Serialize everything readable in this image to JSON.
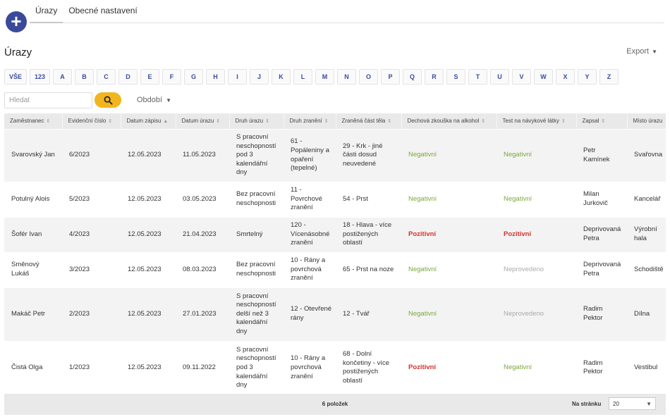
{
  "tabs": [
    {
      "label": "Úrazy",
      "active": true
    },
    {
      "label": "Obecné nastavení",
      "active": false
    }
  ],
  "page": {
    "title": "Úrazy",
    "export_label": "Export"
  },
  "letters": [
    "VŠE",
    "123",
    "A",
    "B",
    "C",
    "D",
    "E",
    "F",
    "G",
    "H",
    "I",
    "J",
    "K",
    "L",
    "M",
    "N",
    "O",
    "P",
    "Q",
    "R",
    "S",
    "T",
    "U",
    "V",
    "W",
    "X",
    "Y",
    "Z"
  ],
  "search": {
    "placeholder": "Hledat",
    "value": ""
  },
  "filter": {
    "period_label": "Období"
  },
  "table": {
    "columns": [
      "Zaměstnanec",
      "Evidenční číslo",
      "Datum zápisu",
      "Datum úrazu",
      "Druh úrazu",
      "Druh zranění",
      "Zraněná část těla",
      "Dechová zkouška na alkohol",
      "Test na návykové látky",
      "Zapsal",
      "Místo úrazu"
    ],
    "sorted_column": "Datum zápisu",
    "rows": [
      {
        "employee": "Svarovský Jan",
        "number": "6/2023",
        "record_date": "12.05.2023",
        "injury_date": "11.05.2023",
        "injury_type": "S pracovní neschopností pod 3 kalendářní dny",
        "wound_type": "61 - Popáleniny a opaření (tepelné)",
        "body_part": "29 - Krk - jiné části dosud neuvedené",
        "alcohol": "Negativní",
        "drugs": "Negativní",
        "recorded_by": "Petr Kamínek",
        "place": "Svařovna"
      },
      {
        "employee": "Potulný Alois",
        "number": "5/2023",
        "record_date": "12.05.2023",
        "injury_date": "03.05.2023",
        "injury_type": "Bez pracovní neschopnosti",
        "wound_type": "11 - Povrchové zranění",
        "body_part": "54 - Prst",
        "alcohol": "Negativní",
        "drugs": "Negativní",
        "recorded_by": "Milan Jurkovič",
        "place": "Kancelář"
      },
      {
        "employee": "Šofér Ivan",
        "number": "4/2023",
        "record_date": "12.05.2023",
        "injury_date": "21.04.2023",
        "injury_type": "Smrtelný",
        "wound_type": "120 - Vícenásobné zranění",
        "body_part": "18 - Hlava - více postižených oblastí",
        "alcohol": "Pozitivní",
        "drugs": "Pozitivní",
        "recorded_by": "Deprivovaná Petra",
        "place": "Výrobní hala"
      },
      {
        "employee": "Směnový Lukáš",
        "number": "3/2023",
        "record_date": "12.05.2023",
        "injury_date": "08.03.2023",
        "injury_type": "Bez pracovní neschopnosti",
        "wound_type": "10 - Rány a povrchová zranění",
        "body_part": "65 - Prst na noze",
        "alcohol": "Negativní",
        "drugs": "Neprovedeno",
        "recorded_by": "Deprivovaná Petra",
        "place": "Schodiště"
      },
      {
        "employee": "Makáč Petr",
        "number": "2/2023",
        "record_date": "12.05.2023",
        "injury_date": "27.01.2023",
        "injury_type": "S pracovní neschopností delší než 3 kalendářní dny",
        "wound_type": "12 - Otevřené rány",
        "body_part": "12 - Tvář",
        "alcohol": "Negativní",
        "drugs": "Neprovedeno",
        "recorded_by": "Radim Pektor",
        "place": "Dílna"
      },
      {
        "employee": "Čistá Olga",
        "number": "1/2023",
        "record_date": "12.05.2023",
        "injury_date": "09.11.2022",
        "injury_type": "S pracovní neschopností pod 3 kalendářní dny",
        "wound_type": "10 - Rány a povrchová zranění",
        "body_part": "68 - Dolní končetiny - více postižených oblastí",
        "alcohol": "Pozitivní",
        "drugs": "Negativní",
        "recorded_by": "Radim Pektor",
        "place": "Vestibul"
      }
    ]
  },
  "footer": {
    "count_text": "6 položek",
    "per_page_label": "Na stránku",
    "per_page_value": "20"
  },
  "colors": {
    "accent": "#3a4a9b",
    "search_button": "#f2b51e",
    "negative": "#7aa83a",
    "positive": "#d6312c",
    "not_done": "#aaaaaa"
  }
}
